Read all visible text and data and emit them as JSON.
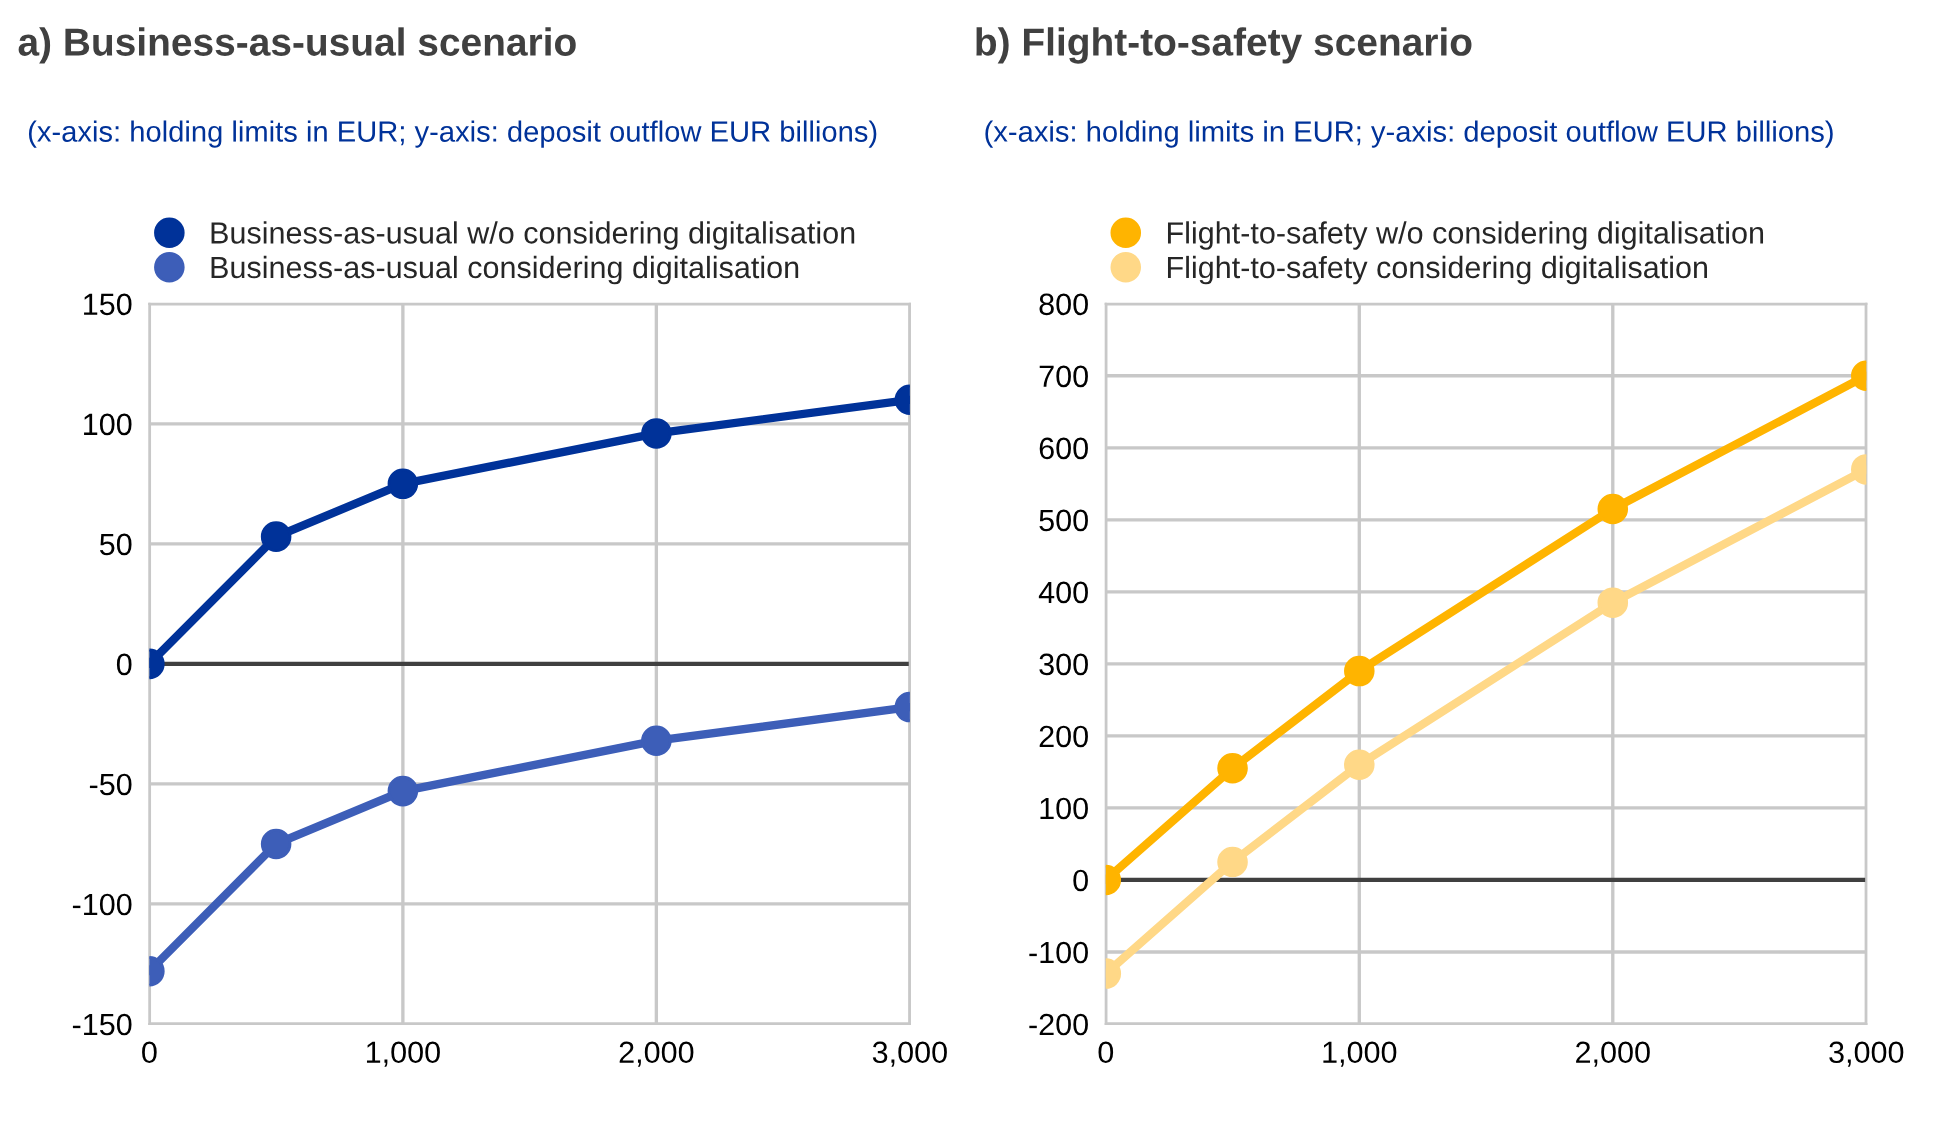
{
  "chart_data": [
    {
      "type": "line",
      "title": "a) Business-as-usual scenario",
      "subtitle": "(x-axis: holding limits in EUR; y-axis: deposit outflow EUR billions)",
      "x": [
        0,
        500,
        1000,
        2000,
        3000
      ],
      "series": [
        {
          "name": "Business-as-usual w/o considering digitalisation",
          "color": "#003299",
          "values": [
            0,
            53,
            75,
            96,
            110
          ]
        },
        {
          "name": "Business-as-usual considering digitalisation",
          "color": "#3d5eb8",
          "values": [
            -128,
            -75,
            -53,
            -32,
            -18
          ]
        }
      ],
      "xlim": [
        0,
        3000
      ],
      "xticks": [
        0,
        {
          "value": 1000,
          "label": "1,000"
        },
        {
          "value": 2000,
          "label": "2,000"
        },
        {
          "value": 3000,
          "label": "3,000"
        }
      ],
      "ylim": [
        -150,
        150
      ],
      "yticks": [
        -150,
        -100,
        -50,
        0,
        50,
        100,
        150
      ],
      "grid": true,
      "legend": "top left",
      "marker": "circle",
      "line_style": "solid",
      "ref_lines": [
        {
          "axis": "y",
          "value": 0,
          "color": "#404040"
        }
      ]
    },
    {
      "type": "line",
      "title": "b) Flight-to-safety scenario",
      "subtitle": "(x-axis: holding limits in EUR; y-axis: deposit outflow EUR billions)",
      "x": [
        0,
        500,
        1000,
        2000,
        3000
      ],
      "series": [
        {
          "name": "Flight-to-safety w/o considering digitalisation",
          "color": "#ffb400",
          "values": [
            0,
            155,
            290,
            515,
            700
          ]
        },
        {
          "name": "Flight-to-safety considering digitalisation",
          "color": "#ffd887",
          "values": [
            -130,
            25,
            160,
            385,
            570
          ]
        }
      ],
      "xlim": [
        0,
        3000
      ],
      "xticks": [
        0,
        {
          "value": 1000,
          "label": "1,000"
        },
        {
          "value": 2000,
          "label": "2,000"
        },
        {
          "value": 3000,
          "label": "3,000"
        }
      ],
      "ylim": [
        -200,
        800
      ],
      "yticks": [
        -200,
        -100,
        0,
        100,
        200,
        300,
        400,
        500,
        600,
        700,
        800
      ],
      "grid": true,
      "legend": "top left",
      "marker": "circle",
      "line_style": "solid",
      "ref_lines": [
        {
          "axis": "y",
          "value": 0,
          "color": "#404040"
        }
      ]
    }
  ]
}
